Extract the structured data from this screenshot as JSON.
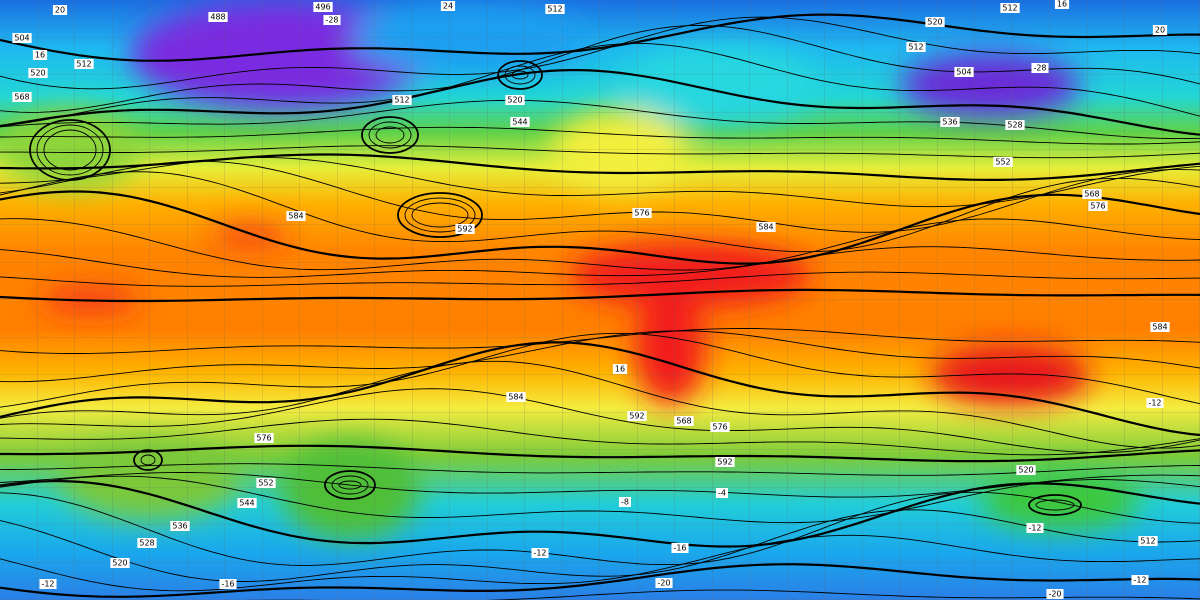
{
  "map": {
    "contour_labels": [
      "20",
      "488",
      "496",
      "-28",
      "24",
      "512",
      "512",
      "16",
      "20",
      "504",
      "16",
      "512",
      "520",
      "568",
      "520",
      "512",
      "504",
      "-28",
      "520",
      "544",
      "512",
      "528",
      "552",
      "536",
      "584",
      "592",
      "576",
      "584",
      "568",
      "576",
      "584",
      "16",
      "584",
      "576",
      "592",
      "568",
      "576",
      "592",
      "520",
      "512",
      "536",
      "528",
      "520",
      "-12",
      "-16",
      "-20",
      "-12",
      "-16",
      "-12",
      "-12",
      "-20",
      "-8",
      "-4",
      "-12",
      "544",
      "552"
    ]
  }
}
